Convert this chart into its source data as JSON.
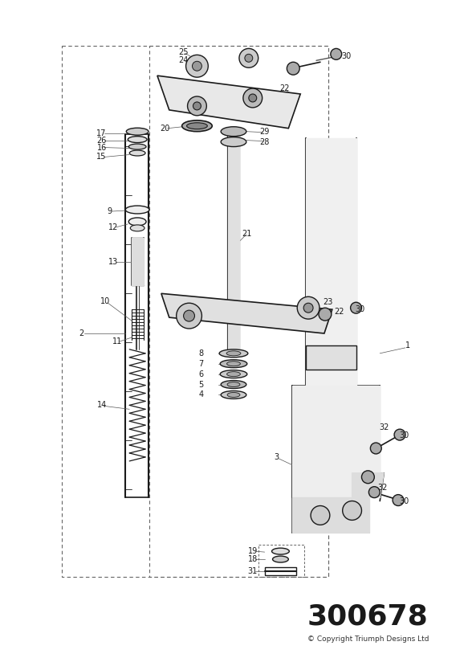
{
  "part_number": "300678",
  "copyright": "© Copyright Triumph Designs Ltd",
  "bg": "#ffffff",
  "lc": "#1a1a1a",
  "tc": "#1a1a1a",
  "pn_fontsize": 26,
  "copy_fontsize": 6.5,
  "lbl_fontsize": 7,
  "figw": 5.83,
  "figh": 8.24,
  "dpi": 100
}
